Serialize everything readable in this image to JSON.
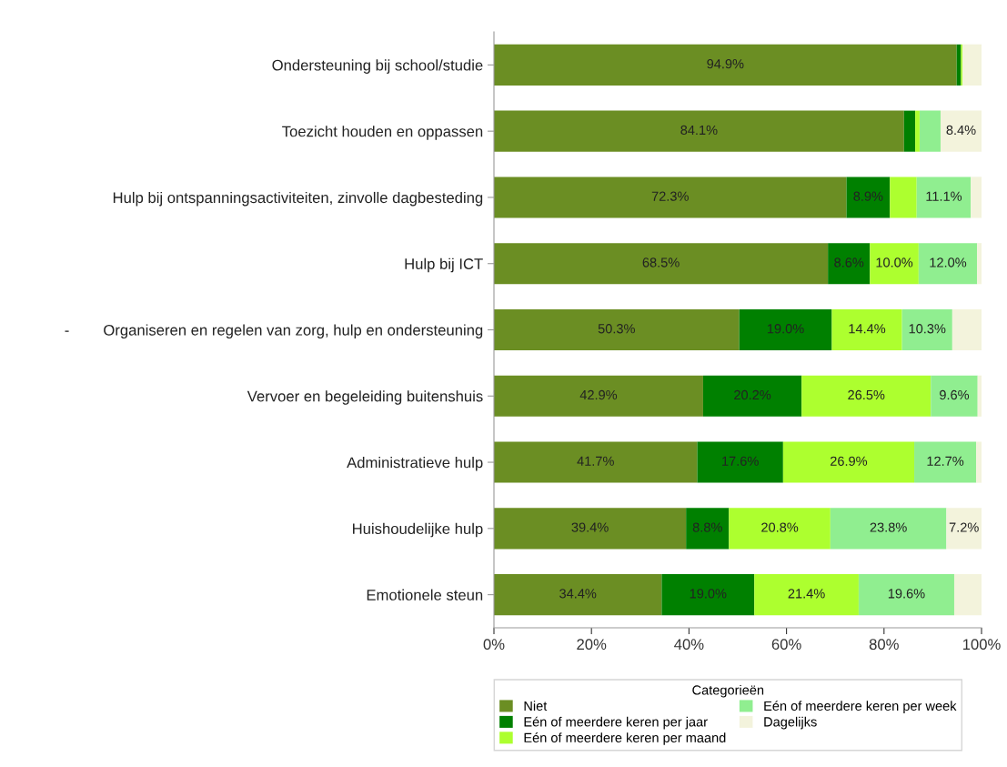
{
  "chart_data": {
    "type": "bar",
    "orientation": "horizontal",
    "stacked": true,
    "categories": [
      "Ondersteuning bij school/studie",
      "Toezicht houden en oppassen",
      "Hulp bij ontspanningsactiviteiten, zinvolle dagbesteding",
      "Hulp bij ICT",
      "-        Organiseren en regelen van zorg, hulp en ondersteuning",
      "Vervoer en begeleiding buitenshuis",
      "Administratieve hulp",
      "Huishoudelijke hulp",
      "Emotionele steun"
    ],
    "series": [
      {
        "name": "Niet",
        "color": "#6b8e23",
        "values": [
          94.9,
          84.1,
          72.3,
          68.5,
          50.3,
          42.9,
          41.7,
          39.4,
          34.4
        ],
        "value_labels": [
          "94.9%",
          "84.1%",
          "72.3%",
          "68.5%",
          "50.3%",
          "42.9%",
          "41.7%",
          "39.4%",
          "34.4%"
        ]
      },
      {
        "name": "Eén of meerdere keren per jaar",
        "color": "#008000",
        "values": [
          0.9,
          2.3,
          8.9,
          8.6,
          19.0,
          20.2,
          17.6,
          8.8,
          19.0
        ],
        "value_labels": [
          null,
          null,
          "8.9%",
          "8.6%",
          "19.0%",
          "20.2%",
          "17.6%",
          "8.8%",
          "19.0%"
        ]
      },
      {
        "name": "Eén of meerdere keren per maand",
        "color": "#adff2f",
        "values": [
          0.3,
          0.9,
          5.5,
          10.0,
          14.4,
          26.5,
          26.9,
          20.8,
          21.4
        ],
        "value_labels": [
          null,
          null,
          null,
          "10.0%",
          "14.4%",
          "26.5%",
          "26.9%",
          "20.8%",
          "21.4%"
        ]
      },
      {
        "name": "Eén of meerdere keren per week",
        "color": "#90ee90",
        "values": [
          0.0,
          4.3,
          11.1,
          12.0,
          10.3,
          9.6,
          12.7,
          23.8,
          19.6
        ],
        "value_labels": [
          null,
          null,
          "11.1%",
          "12.0%",
          "10.3%",
          "9.6%",
          "12.7%",
          "23.8%",
          "19.6%"
        ]
      },
      {
        "name": "Dagelijks",
        "color": "#f3f3dc",
        "values": [
          3.9,
          8.4,
          2.2,
          0.9,
          6.0,
          0.8,
          1.1,
          7.2,
          5.6
        ],
        "value_labels": [
          null,
          "8.4%",
          null,
          null,
          null,
          null,
          null,
          "7.2%",
          null
        ]
      }
    ],
    "xlim": [
      0,
      100
    ],
    "xticks": [
      {
        "value": 0,
        "label": "0%"
      },
      {
        "value": 20,
        "label": "20%"
      },
      {
        "value": 40,
        "label": "40%"
      },
      {
        "value": 60,
        "label": "60%"
      },
      {
        "value": 80,
        "label": "80%"
      },
      {
        "value": 100,
        "label": "100%"
      }
    ],
    "legend": "bottom",
    "legend_title": "Categorieën",
    "grid": false
  }
}
